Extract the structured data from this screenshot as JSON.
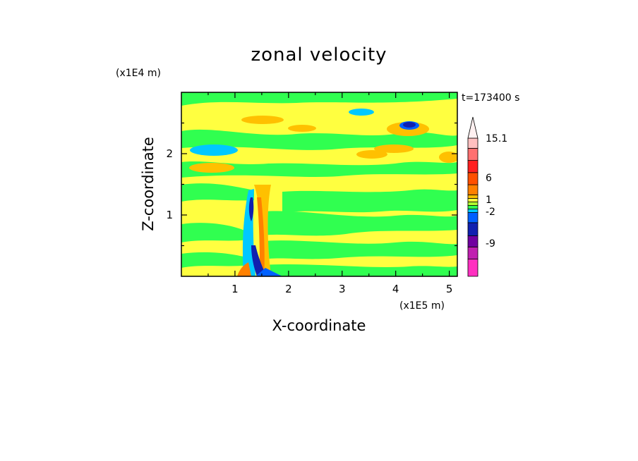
{
  "chart_data": {
    "type": "heatmap",
    "title": "zonal velocity",
    "xlabel": "X-coordinate",
    "ylabel": "Z-coordinate",
    "x_multiplier": "(x1E5 m)",
    "y_multiplier": "(x1E4 m)",
    "time_label": "t=173400 s",
    "xlim": [
      0,
      5.15
    ],
    "ylim": [
      0,
      3.0
    ],
    "x_ticks": [
      1,
      2,
      3,
      4,
      5
    ],
    "y_ticks": [
      1,
      2
    ],
    "colorbar": {
      "extend_max": true,
      "labels": [
        "15.1",
        "6",
        "1",
        "-2",
        "-9"
      ],
      "level_colors": [
        "#ff30c0",
        "#c020b0",
        "#7000a0",
        "#1020b0",
        "#0060ff",
        "#00c8ff",
        "#30ff50",
        "#b0ff30",
        "#ffff40",
        "#ffc000",
        "#ff8000",
        "#ff5000",
        "#ff2020",
        "#ff7070",
        "#ffc0c0"
      ],
      "arrow_color": "#fff0f0"
    },
    "field_description": "mostly weak flow with alternating horizontal layers, a strong vertical jet near x=1.3-1.6 (x1E5 m) in the lower half"
  }
}
